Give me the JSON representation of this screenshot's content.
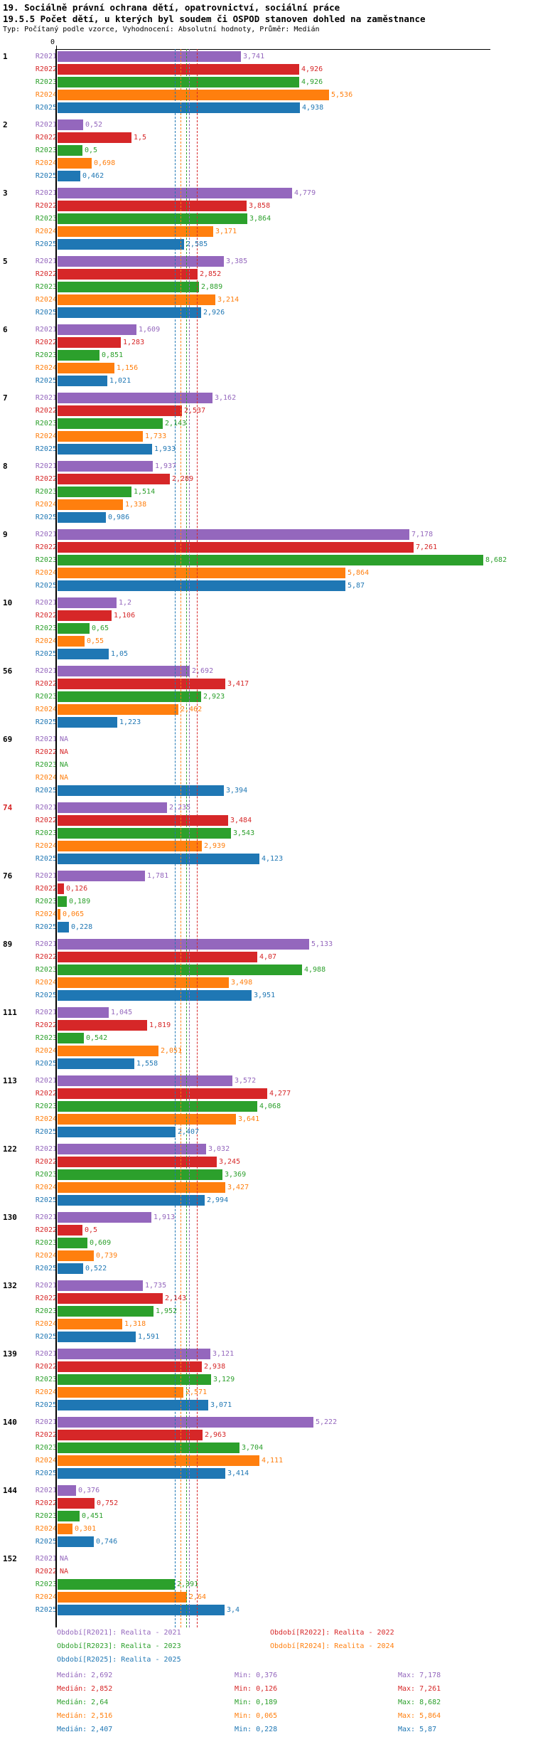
{
  "header": {
    "title_line1": "19. Sociálně právní ochrana dětí, opatrovnictví, sociální práce",
    "title_line2": "19.5.5 Počet dětí, u kterých byl soudem či OSPOD stanoven dohled na zaměstnance",
    "subtitle": "Typ: Počítaný podle vzorce, Vyhodnocení: Absolutní hodnoty, Průměr: Medián"
  },
  "axis": {
    "zero_label": "0",
    "x_min": 0,
    "x_max": 8.9,
    "grid": false
  },
  "stats_labels": {
    "median": "Medián:",
    "min": "Min:",
    "max": "Max:"
  },
  "na_text": "NA",
  "series_meta": [
    {
      "key": "R2021",
      "color": "#9467bd",
      "legend": "Období[R2021]: Realita - 2021",
      "median": "2,692",
      "min": "0,376",
      "max": "7,178"
    },
    {
      "key": "R2022",
      "color": "#d62728",
      "legend": "Období[R2022]: Realita - 2022",
      "median": "2,852",
      "min": "0,126",
      "max": "7,261"
    },
    {
      "key": "R2023",
      "color": "#2ca02c",
      "legend": "Období[R2023]: Realita - 2023",
      "median": "2,64",
      "min": "0,189",
      "max": "8,682"
    },
    {
      "key": "R2024",
      "color": "#ff7f0e",
      "legend": "Období[R2024]: Realita - 2024",
      "median": "2,516",
      "min": "0,065",
      "max": "5,864"
    },
    {
      "key": "R2025",
      "color": "#1f77b4",
      "legend": "Období[R2025]: Realita - 2025",
      "median": "2,407",
      "min": "0,228",
      "max": "5,87"
    }
  ],
  "chart_data": {
    "type": "bar",
    "orientation": "horizontal",
    "series_order": [
      "R2021",
      "R2022",
      "R2023",
      "R2024",
      "R2025"
    ],
    "legend_position": "bottom",
    "groups": [
      {
        "id": "1",
        "values": [
          "3,741",
          "4,926",
          "4,926",
          "5,536",
          "4,938"
        ]
      },
      {
        "id": "2",
        "values": [
          "0,52",
          "1,5",
          "0,5",
          "0,698",
          "0,462"
        ]
      },
      {
        "id": "3",
        "values": [
          "4,779",
          "3,858",
          "3,864",
          "3,171",
          "2,585"
        ]
      },
      {
        "id": "5",
        "values": [
          "3,385",
          "2,852",
          "2,889",
          "3,214",
          "2,926"
        ]
      },
      {
        "id": "6",
        "values": [
          "1,609",
          "1,283",
          "0,851",
          "1,156",
          "1,021"
        ]
      },
      {
        "id": "7",
        "values": [
          "3,162",
          "2,537",
          "2,143",
          "1,733",
          "1,933"
        ]
      },
      {
        "id": "8",
        "values": [
          "1,937",
          "2,289",
          "1,514",
          "1,338",
          "0,986"
        ]
      },
      {
        "id": "9",
        "values": [
          "7,178",
          "7,261",
          "8,682",
          "5,864",
          "5,87"
        ]
      },
      {
        "id": "10",
        "values": [
          "1,2",
          "1,106",
          "0,65",
          "0,55",
          "1,05"
        ]
      },
      {
        "id": "56",
        "values": [
          "2,692",
          "3,417",
          "2,923",
          "2,462",
          "1,223"
        ]
      },
      {
        "id": "69",
        "values": [
          "NA",
          "NA",
          "NA",
          "NA",
          "3,394"
        ]
      },
      {
        "id": "74",
        "id_color": "#d62728",
        "values": [
          "2,235",
          "3,484",
          "3,543",
          "2,939",
          "4,123"
        ]
      },
      {
        "id": "76",
        "values": [
          "1,781",
          "0,126",
          "0,189",
          "0,065",
          "0,228"
        ]
      },
      {
        "id": "89",
        "values": [
          "5,133",
          "4,07",
          "4,988",
          "3,498",
          "3,951"
        ]
      },
      {
        "id": "111",
        "values": [
          "1,045",
          "1,819",
          "0,542",
          "2,051",
          "1,558"
        ]
      },
      {
        "id": "113",
        "values": [
          "3,572",
          "4,277",
          "4,068",
          "3,641",
          "2,407"
        ]
      },
      {
        "id": "122",
        "values": [
          "3,032",
          "3,245",
          "3,369",
          "3,427",
          "2,994"
        ]
      },
      {
        "id": "130",
        "values": [
          "1,913",
          "0,5",
          "0,609",
          "0,739",
          "0,522"
        ]
      },
      {
        "id": "132",
        "values": [
          "1,735",
          "2,143",
          "1,952",
          "1,318",
          "1,591"
        ]
      },
      {
        "id": "139",
        "values": [
          "3,121",
          "2,938",
          "3,129",
          "2,571",
          "3,071"
        ]
      },
      {
        "id": "140",
        "values": [
          "5,222",
          "2,963",
          "3,704",
          "4,111",
          "3,414"
        ]
      },
      {
        "id": "144",
        "values": [
          "0,376",
          "0,752",
          "0,451",
          "0,301",
          "0,746"
        ]
      },
      {
        "id": "152",
        "values": [
          "NA",
          "NA",
          "2,391",
          "2,64",
          "3,4"
        ]
      }
    ]
  }
}
